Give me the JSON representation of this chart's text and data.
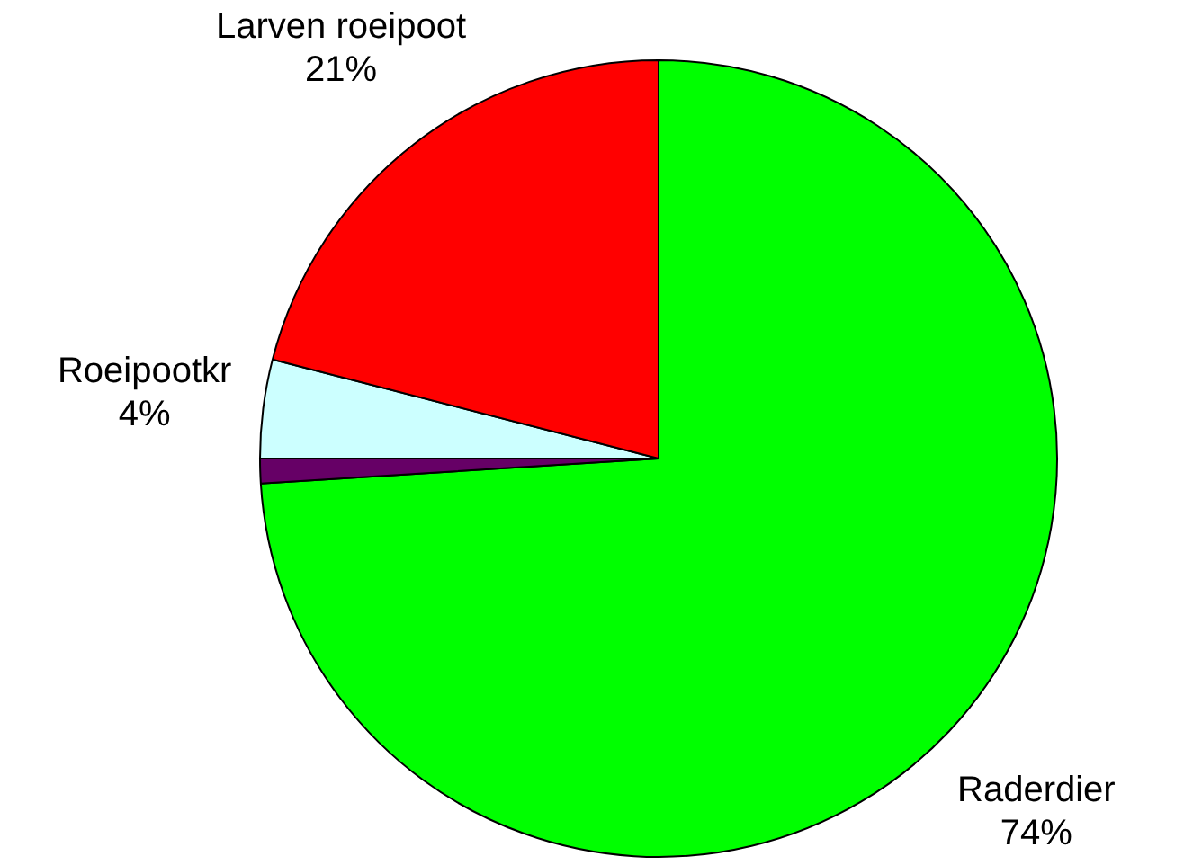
{
  "chart_data": {
    "type": "pie",
    "categories": [
      "Raderdier",
      null,
      "Roeipootkr",
      "Larven roeipoot"
    ],
    "values": [
      74,
      1,
      4,
      21
    ],
    "value_labels": [
      "74%",
      null,
      "4%",
      "21%"
    ],
    "colors": [
      "#00ff00",
      "#660066",
      "#ccffff",
      "#ff0000"
    ],
    "legend": false
  }
}
